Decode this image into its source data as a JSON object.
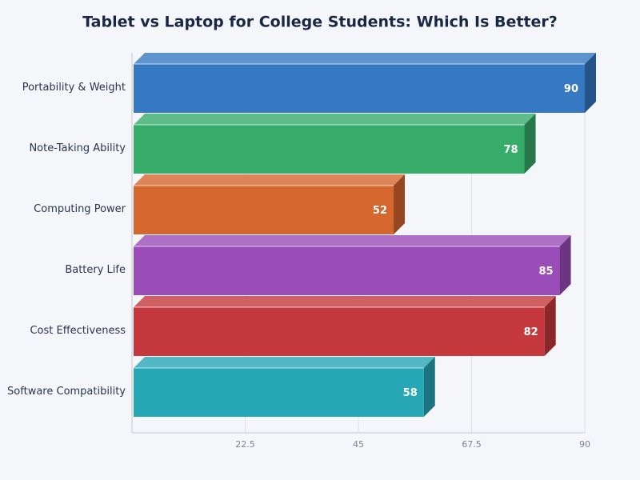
{
  "chart_data": {
    "type": "bar3d",
    "orientation": "horizontal",
    "title": "Tablet vs Laptop for College Students: Which Is Better?",
    "categories": [
      "Portability & Weight",
      "Note-Taking Ability",
      "Computing Power",
      "Battery Life",
      "Cost Effectiveness",
      "Software Compatibility"
    ],
    "values": [
      90,
      78,
      52,
      85,
      82,
      58
    ],
    "colors": [
      "#3579c2",
      "#36ab6a",
      "#d4662e",
      "#9a4cb8",
      "#c5383e",
      "#27a6b5"
    ],
    "xlim": [
      0,
      90
    ],
    "xticks": [
      22.5,
      45,
      67.5,
      90
    ],
    "grid": true
  }
}
